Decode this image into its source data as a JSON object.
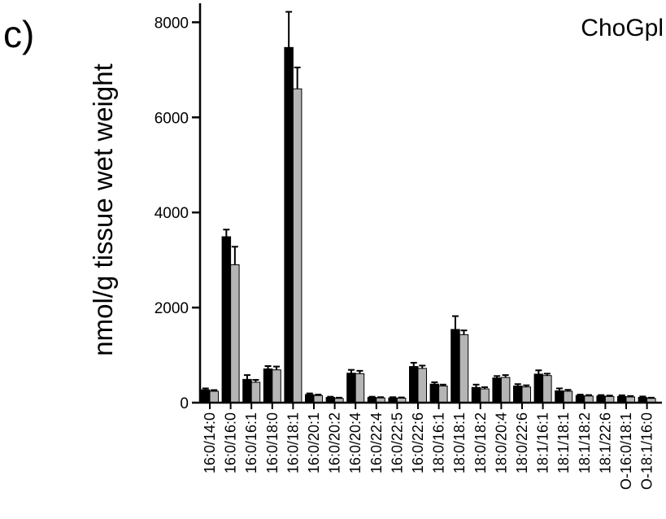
{
  "panel_label": "c)",
  "chart_data": {
    "type": "bar",
    "title": "ChoGpl",
    "xlabel": "",
    "ylabel": "nmol/g tissue wet weight",
    "ylim": [
      0,
      8400
    ],
    "yticks": [
      0,
      2000,
      4000,
      6000,
      8000
    ],
    "ytick_labels": [
      "0",
      "2000",
      "4000",
      "6000",
      "8000"
    ],
    "categories": [
      "16:0/14:0",
      "16:0/16:0",
      "16:0/16:1",
      "16:0/18:0",
      "16:0/18:1",
      "16:0/20:1",
      "16:0/20:2",
      "16:0/20:4",
      "16:0/22:4",
      "16:0/22:5",
      "16:0/22:6",
      "18:0/16:1",
      "18:0/18:1",
      "18:0/18:2",
      "18:0/20:4",
      "18:0/22:6",
      "18:1/16:1",
      "18:1/18:1",
      "18:1/18:2",
      "18:1/22:6",
      "O-16:0/18:1",
      "O-18:1/16:0"
    ],
    "series": [
      {
        "color": "#000000",
        "values": [
          270,
          3490,
          490,
          710,
          7470,
          170,
          110,
          620,
          110,
          100,
          760,
          390,
          1540,
          320,
          520,
          350,
          600,
          250,
          150,
          140,
          130,
          110
        ],
        "errors": [
          30,
          150,
          90,
          60,
          750,
          25,
          15,
          70,
          15,
          15,
          80,
          40,
          280,
          60,
          40,
          40,
          80,
          50,
          20,
          20,
          25,
          20
        ]
      },
      {
        "color": "#b5b5b5",
        "values": [
          240,
          2900,
          430,
          690,
          6600,
          150,
          90,
          610,
          100,
          95,
          720,
          350,
          1430,
          290,
          530,
          330,
          570,
          240,
          140,
          130,
          120,
          90
        ],
        "errors": [
          25,
          380,
          50,
          70,
          450,
          20,
          15,
          60,
          15,
          15,
          60,
          30,
          90,
          35,
          50,
          35,
          40,
          30,
          20,
          20,
          20,
          15
        ]
      }
    ]
  }
}
